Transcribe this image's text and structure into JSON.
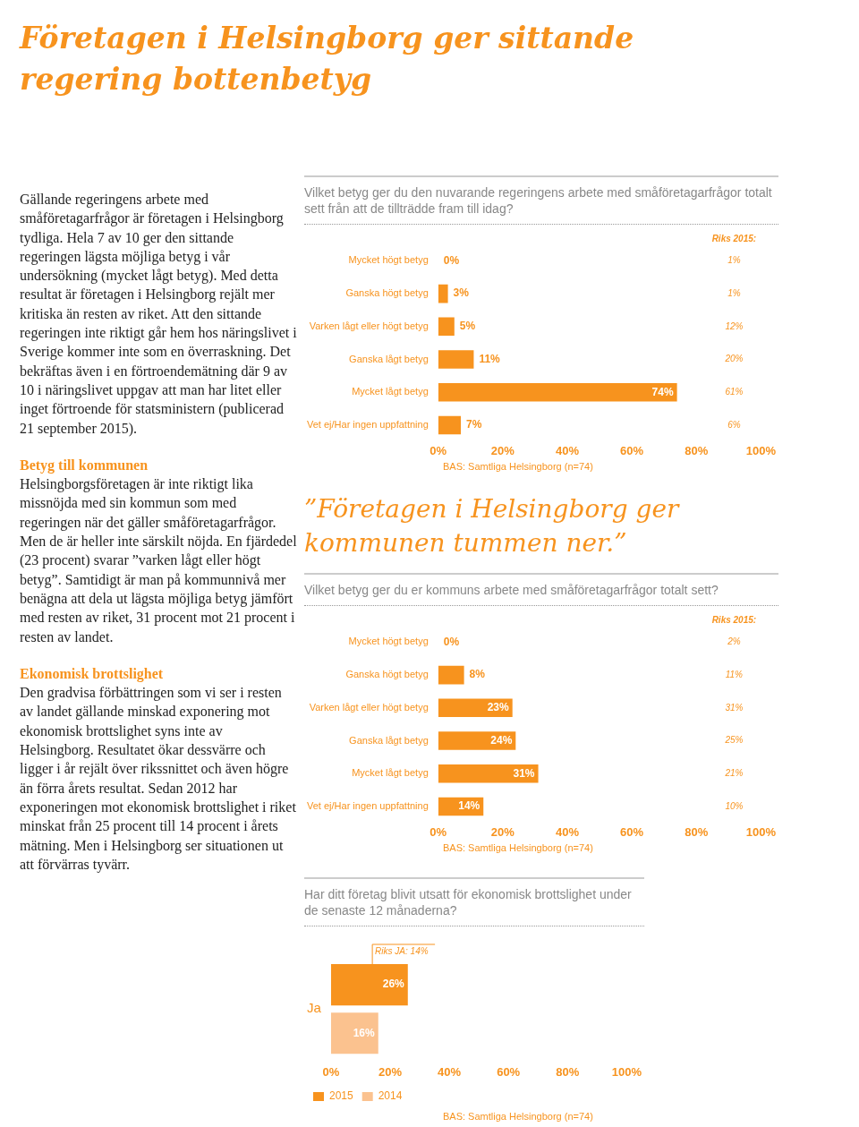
{
  "chart_data": [
    {
      "type": "other",
      "title": "Företagen i Helsingborg ger sittande regering bottenbetyg",
      "annotations": [
        "Gällande regeringens arbete med småföretagarfrågor är företagen i Helsingborg tydliga. Hela 7 av 10 ger den sittande regeringen lägsta möjliga betyg i vår undersökning (mycket lågt betyg). Med detta resultat är företagen i Helsingborg rejält mer kritiska än resten av riket. Att den sittande regeringen inte riktigt går hem hos näringslivet i Sverige kommer inte som en överraskning. Det bekräftas även i en förtroendemätning där 9 av 10 i näringslivet uppgav att man har litet eller inget förtroende för statsministern (publicerad 21 september 2015).",
        "Betyg till kommunen",
        "Helsingborgsföretagen är inte riktigt lika missnöjda med sin kommun som med regeringen när det gäller småföretagarfrågor. Men de är heller inte särskilt nöjda. En fjärdedel (23 procent) svarar ”varken lågt eller högt betyg”. Samtidigt är man på kommunnivå mer benägna att dela ut lägsta möjliga betyg jämfört med resten av riket, 31 procent mot 21 procent i resten av landet.",
        "Ekonomisk brottslighet",
        "Den gradvisa förbättringen som vi ser i resten av landet gällande minskad exponering mot ekonomisk brottslighet syns inte av Helsingborg. Resultatet ökar dessvärre och ligger i år rejält över rikssnittet och även högre än förra årets resultat. Sedan 2012 har exponeringen mot ekonomisk brottslighet i riket minskat från 25 procent till 14 procent i årets mätning. Men i Helsingborg ser situationen ut att förvärras tyvärr."
      ]
    },
    {
      "type": "bar",
      "orientation": "horizontal",
      "title": "Vilket betyg ger du den nuvarande regeringens arbete med småföretagarfrågor totalt sett från att de tillträdde fram till idag?",
      "categories": [
        "Mycket högt betyg",
        "Ganska högt betyg",
        "Varken lågt eller högt betyg",
        "Ganska lågt betyg",
        "Mycket lågt betyg",
        "Vet ej/Har ingen uppfattning"
      ],
      "values": [
        0,
        3,
        5,
        11,
        74,
        7
      ],
      "color": "#f7931e",
      "value_labels": [
        "0%",
        "3%",
        "5%",
        "11%",
        "74%",
        "7%"
      ],
      "xlim": [
        0,
        100
      ],
      "xticks": [
        {
          "value": 0,
          "label": "0%"
        },
        {
          "value": 20,
          "label": "20%"
        },
        {
          "value": 40,
          "label": "40%"
        },
        {
          "value": 60,
          "label": "60%"
        },
        {
          "value": 80,
          "label": "80%"
        },
        {
          "value": 100,
          "label": "100%"
        }
      ],
      "annotations": [
        "Riks 2015:",
        "1%",
        "1%",
        "12%",
        "20%",
        "61%",
        "6%",
        "BAS: Samtliga Helsingborg (n=74)"
      ]
    },
    {
      "type": "bar",
      "orientation": "horizontal",
      "subtitle": "”Företagen i Helsingborg ger kommunen tummen ner.”",
      "title": "Vilket betyg ger du er kommuns arbete med småföretagarfrågor totalt sett?",
      "categories": [
        "Mycket högt betyg",
        "Ganska högt betyg",
        "Varken lågt eller högt betyg",
        "Ganska lågt betyg",
        "Mycket lågt betyg",
        "Vet ej/Har ingen uppfattning"
      ],
      "values": [
        0,
        8,
        23,
        24,
        31,
        14
      ],
      "color": "#f7931e",
      "value_labels": [
        "0%",
        "8%",
        "23%",
        "24%",
        "31%",
        "14%"
      ],
      "xlim": [
        0,
        100
      ],
      "xticks": [
        {
          "value": 0,
          "label": "0%"
        },
        {
          "value": 20,
          "label": "20%"
        },
        {
          "value": 40,
          "label": "40%"
        },
        {
          "value": 60,
          "label": "60%"
        },
        {
          "value": 80,
          "label": "80%"
        },
        {
          "value": 100,
          "label": "100%"
        }
      ],
      "annotations": [
        "Riks 2015:",
        "2%",
        "11%",
        "31%",
        "25%",
        "21%",
        "10%",
        "BAS: Samtliga Helsingborg (n=74)"
      ]
    },
    {
      "type": "bar",
      "orientation": "horizontal",
      "title": "Har ditt företag blivit utsatt för ekonomisk brottslighet under de senaste 12 månaderna?",
      "categories": [
        "Ja"
      ],
      "series": [
        {
          "name": "2015",
          "color": "#f7931e",
          "values": [
            26
          ],
          "value_labels": [
            "26%"
          ]
        },
        {
          "name": "2014",
          "color": "#fbc28f",
          "values": [
            16
          ],
          "value_labels": [
            "16%"
          ]
        }
      ],
      "xlim": [
        0,
        100
      ],
      "xticks": [
        {
          "value": 0,
          "label": "0%"
        },
        {
          "value": 20,
          "label": "20%"
        },
        {
          "value": 40,
          "label": "40%"
        },
        {
          "value": 60,
          "label": "60%"
        },
        {
          "value": 80,
          "label": "80%"
        },
        {
          "value": 100,
          "label": "100%"
        }
      ],
      "ref_lines": [
        {
          "axis": "x",
          "value": 14,
          "label": "Riks JA: 14%",
          "color": "#f7931e"
        }
      ],
      "legend": "bottom",
      "annotations": [
        "BAS: Samtliga Helsingborg (n=74)"
      ]
    }
  ]
}
